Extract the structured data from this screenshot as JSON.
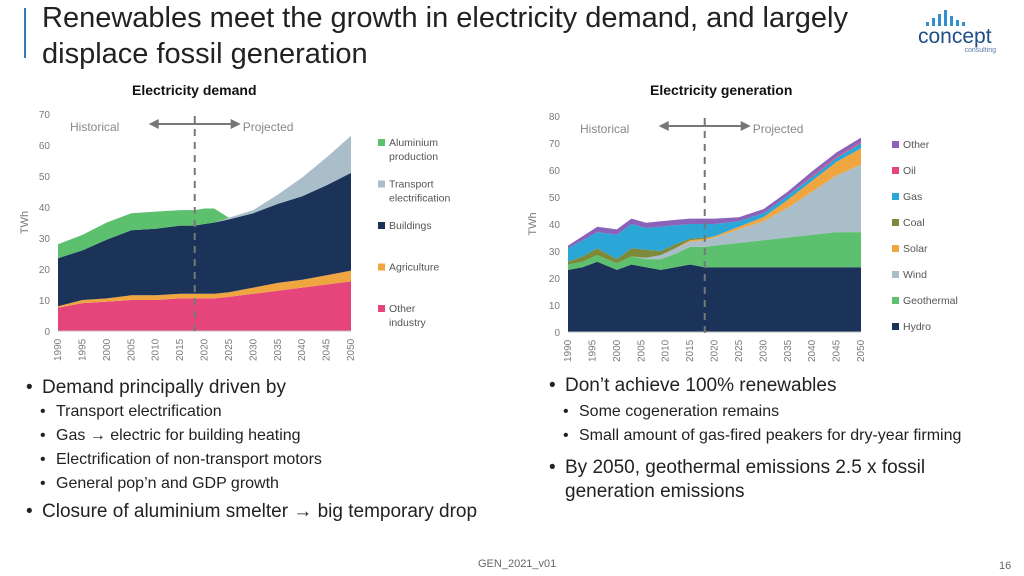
{
  "title": "Renewables meet the growth in electricity demand, and largely displace fossil generation",
  "logo": {
    "word": "concept",
    "sub": "consulting"
  },
  "left_bullets": {
    "b1": "Demand principally driven by",
    "sub": [
      "Transport electrification",
      "Gas → electric for building heating",
      "Electrification of non-transport motors",
      "General pop’n and GDP growth"
    ],
    "b2": "Closure of aluminium smelter → big temporary drop"
  },
  "right_bullets": {
    "b1": "Don’t achieve 100% renewables",
    "sub": [
      "Some cogeneration remains",
      "Small amount of gas-fired peakers for dry-year firming"
    ],
    "b2": "By 2050, geothermal emissions 2.5 x fossil generation emissions"
  },
  "footer": {
    "code": "GEN_2021_v01",
    "page": "16"
  },
  "chart_data": [
    {
      "type": "area",
      "stacked": true,
      "title": "Electricity demand",
      "xlabel": "",
      "ylabel": "TWh",
      "ylim": [
        0,
        70
      ],
      "yticks": [
        0,
        10,
        20,
        30,
        40,
        50,
        60,
        70
      ],
      "xticks": [
        1990,
        1995,
        2000,
        2005,
        2010,
        2015,
        2020,
        2025,
        2030,
        2035,
        2040,
        2045,
        2050
      ],
      "x": [
        1990,
        1995,
        2000,
        2005,
        2010,
        2015,
        2018,
        2020,
        2022,
        2025,
        2030,
        2035,
        2040,
        2045,
        2050
      ],
      "annotations": {
        "left": "Historical",
        "right": "Projected",
        "divider_year": 2018
      },
      "series": [
        {
          "name": "Other industry",
          "color": "#e5457a",
          "values": [
            7.5,
            9,
            9.5,
            10,
            10,
            10.5,
            10.5,
            10.5,
            10.5,
            11,
            12,
            13,
            14,
            15,
            16
          ]
        },
        {
          "name": "Agriculture",
          "color": "#f0a640",
          "values": [
            0.5,
            1,
            1,
            1.5,
            1.5,
            1.5,
            1.5,
            1.5,
            1.5,
            1.5,
            2,
            2.5,
            2.5,
            3,
            3.5
          ]
        },
        {
          "name": "Buildings",
          "color": "#1b3358",
          "values": [
            15.5,
            16,
            19,
            21,
            21.5,
            22,
            22,
            22.5,
            23,
            23.5,
            24,
            25.5,
            27,
            29,
            31.5
          ]
        },
        {
          "name": "Transport electrification",
          "color": "#a9bec8",
          "values": [
            0,
            0,
            0,
            0,
            0,
            0,
            0,
            0,
            0,
            0.5,
            1,
            3,
            6,
            9,
            12
          ]
        },
        {
          "name": "Aluminium production",
          "color": "#5cc06f",
          "values": [
            4.5,
            5,
            5.5,
            5.5,
            5.5,
            5,
            5,
            5,
            4.5,
            0,
            0,
            0,
            0,
            0,
            0
          ]
        }
      ]
    },
    {
      "type": "area",
      "stacked": true,
      "title": "Electricity generation",
      "xlabel": "",
      "ylabel": "TWh",
      "ylim": [
        0,
        80
      ],
      "yticks": [
        0,
        10,
        20,
        30,
        40,
        50,
        60,
        70,
        80
      ],
      "xticks": [
        1990,
        1995,
        2000,
        2005,
        2010,
        2015,
        2020,
        2025,
        2030,
        2035,
        2040,
        2045,
        2050
      ],
      "x": [
        1990,
        1993,
        1996,
        2000,
        2003,
        2006,
        2009,
        2012,
        2015,
        2018,
        2020,
        2025,
        2030,
        2035,
        2040,
        2045,
        2050
      ],
      "annotations": {
        "left": "Historical",
        "right": "Projected",
        "divider_year": 2018
      },
      "series": [
        {
          "name": "Hydro",
          "color": "#1b3358",
          "values": [
            23,
            24,
            26,
            23,
            25,
            24,
            23,
            24,
            25,
            24,
            24,
            24,
            24,
            24,
            24,
            24,
            24
          ]
        },
        {
          "name": "Geothermal",
          "color": "#5cc06f",
          "values": [
            2,
            2,
            2.5,
            2.5,
            3,
            3,
            4,
            5,
            6.5,
            7.5,
            8,
            9,
            10,
            11,
            12,
            13,
            13
          ]
        },
        {
          "name": "Wind",
          "color": "#a9bec8",
          "values": [
            0,
            0,
            0,
            0,
            0,
            0.5,
            1.5,
            2,
            2,
            2.5,
            3,
            5,
            7,
            11,
            16,
            21,
            25
          ]
        },
        {
          "name": "Solar",
          "color": "#f0a640",
          "values": [
            0,
            0,
            0,
            0,
            0,
            0,
            0,
            0,
            0.5,
            0.5,
            0.5,
            1,
            1.5,
            3,
            4,
            5,
            6
          ]
        },
        {
          "name": "Coal",
          "color": "#7c8a3a",
          "values": [
            1,
            2,
            2.5,
            1.5,
            3,
            3,
            1.5,
            1.5,
            0.5,
            0.5,
            0,
            0,
            0,
            0,
            0,
            0,
            0
          ]
        },
        {
          "name": "Gas",
          "color": "#2aa7d6",
          "values": [
            5,
            6,
            6,
            9,
            9,
            8,
            9,
            7,
            5.5,
            5,
            4.5,
            2,
            1.5,
            1.5,
            1.5,
            1.5,
            2
          ]
        },
        {
          "name": "Oil",
          "color": "#e5457a",
          "values": [
            0,
            0,
            0,
            0,
            0,
            0,
            0,
            0,
            0,
            0,
            0,
            0,
            0,
            0,
            0.5,
            0.5,
            0.5
          ]
        },
        {
          "name": "Other",
          "color": "#8b62b9",
          "values": [
            1,
            1.5,
            2,
            2,
            2,
            2,
            2,
            2,
            2,
            2,
            2,
            1.5,
            1.5,
            1.5,
            1.5,
            1.5,
            1.5
          ]
        }
      ]
    }
  ]
}
